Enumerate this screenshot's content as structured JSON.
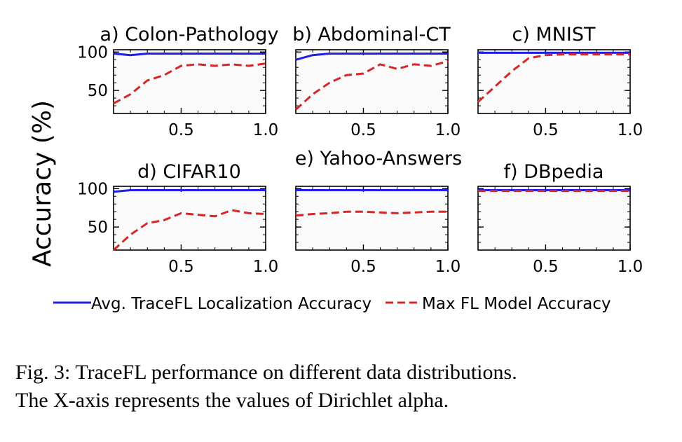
{
  "figure": {
    "ylabel": "Accuracy (%)",
    "legend": [
      {
        "label": "Avg. TraceFL Localization Accuracy",
        "color": "#1f1fe8",
        "style": "solid"
      },
      {
        "label": "Max FL Model Accuracy",
        "color": "#d62728",
        "style": "dashed"
      }
    ]
  },
  "chart_data": [
    {
      "type": "line",
      "title": "a) Colon-Pathology",
      "x": [
        0.1,
        0.2,
        0.3,
        0.4,
        0.5,
        0.6,
        0.7,
        0.8,
        0.9,
        1.0
      ],
      "xticks": [
        "0.5",
        "1.0"
      ],
      "yticks": [
        "50",
        "100"
      ],
      "ylim": [
        20,
        103
      ],
      "xlim": [
        0.1,
        1.0
      ],
      "series": [
        {
          "name": "Avg. TraceFL Localization Accuracy",
          "values": [
            98,
            96,
            98,
            98,
            98,
            98,
            98,
            98,
            98,
            98
          ]
        },
        {
          "name": "Max FL Model Accuracy",
          "values": [
            33,
            45,
            63,
            70,
            82,
            84,
            82,
            84,
            82,
            85
          ]
        }
      ]
    },
    {
      "type": "line",
      "title": "b) Abdominal-CT",
      "x": [
        0.1,
        0.2,
        0.3,
        0.4,
        0.5,
        0.6,
        0.7,
        0.8,
        0.9,
        1.0
      ],
      "xticks": [
        "0.5",
        "1.0"
      ],
      "yticks": [],
      "ylim": [
        20,
        103
      ],
      "xlim": [
        0.1,
        1.0
      ],
      "series": [
        {
          "name": "Avg. TraceFL Localization Accuracy",
          "values": [
            90,
            96,
            98,
            98,
            98,
            98,
            98,
            98,
            98,
            98
          ]
        },
        {
          "name": "Max FL Model Accuracy",
          "values": [
            25,
            45,
            60,
            70,
            72,
            84,
            78,
            84,
            82,
            88
          ]
        }
      ]
    },
    {
      "type": "line",
      "title": "c) MNIST",
      "x": [
        0.1,
        0.2,
        0.3,
        0.4,
        0.5,
        0.6,
        0.7,
        0.8,
        0.9,
        1.0
      ],
      "xticks": [
        "0.5",
        "1.0"
      ],
      "yticks": [],
      "ylim": [
        20,
        103
      ],
      "xlim": [
        0.1,
        1.0
      ],
      "series": [
        {
          "name": "Avg. TraceFL Localization Accuracy",
          "values": [
            99,
            99,
            99,
            99,
            99,
            99,
            99,
            99,
            99,
            99
          ]
        },
        {
          "name": "Max FL Model Accuracy",
          "values": [
            35,
            55,
            75,
            92,
            96,
            97,
            97,
            97,
            97,
            97
          ]
        }
      ]
    },
    {
      "type": "line",
      "title": "d) CIFAR10",
      "x": [
        0.1,
        0.2,
        0.3,
        0.4,
        0.5,
        0.6,
        0.7,
        0.8,
        0.9,
        1.0
      ],
      "xticks": [
        "0.5",
        "1.0"
      ],
      "yticks": [
        "50",
        "100"
      ],
      "ylim": [
        20,
        103
      ],
      "xlim": [
        0.1,
        1.0
      ],
      "series": [
        {
          "name": "Avg. TraceFL Localization Accuracy",
          "values": [
            96,
            98,
            98,
            98,
            98,
            98,
            98,
            98,
            98,
            98
          ]
        },
        {
          "name": "Max FL Model Accuracy",
          "values": [
            20,
            40,
            55,
            59,
            68,
            66,
            64,
            72,
            68,
            67
          ]
        }
      ]
    },
    {
      "type": "line",
      "title": "e) Yahoo-Answers",
      "x": [
        0.1,
        0.2,
        0.3,
        0.4,
        0.5,
        0.6,
        0.7,
        0.8,
        0.9,
        1.0
      ],
      "xticks": [
        "0.5",
        "1.0"
      ],
      "yticks": [],
      "ylim": [
        20,
        103
      ],
      "xlim": [
        0.1,
        1.0
      ],
      "series": [
        {
          "name": "Avg. TraceFL Localization Accuracy",
          "values": [
            98,
            98,
            98,
            98,
            98,
            98,
            98,
            98,
            98,
            98
          ]
        },
        {
          "name": "Max FL Model Accuracy",
          "values": [
            65,
            67,
            68,
            70,
            70,
            69,
            68,
            69,
            70,
            70
          ]
        }
      ]
    },
    {
      "type": "line",
      "title": "f) DBpedia",
      "x": [
        0.1,
        0.2,
        0.3,
        0.4,
        0.5,
        0.6,
        0.7,
        0.8,
        0.9,
        1.0
      ],
      "xticks": [
        "0.5",
        "1.0"
      ],
      "yticks": [],
      "ylim": [
        20,
        103
      ],
      "xlim": [
        0.1,
        1.0
      ],
      "series": [
        {
          "name": "Avg. TraceFL Localization Accuracy",
          "values": [
            98,
            98,
            98,
            98,
            98,
            98,
            98,
            98,
            98,
            98
          ]
        },
        {
          "name": "Max FL Model Accuracy",
          "values": [
            97,
            97,
            97,
            97,
            97,
            97,
            97,
            97,
            97,
            97
          ]
        }
      ]
    }
  ],
  "caption": {
    "line1": "Fig. 3: TraceFL performance on different data distributions.",
    "line2": "The X-axis represents the values of Dirichlet alpha."
  }
}
